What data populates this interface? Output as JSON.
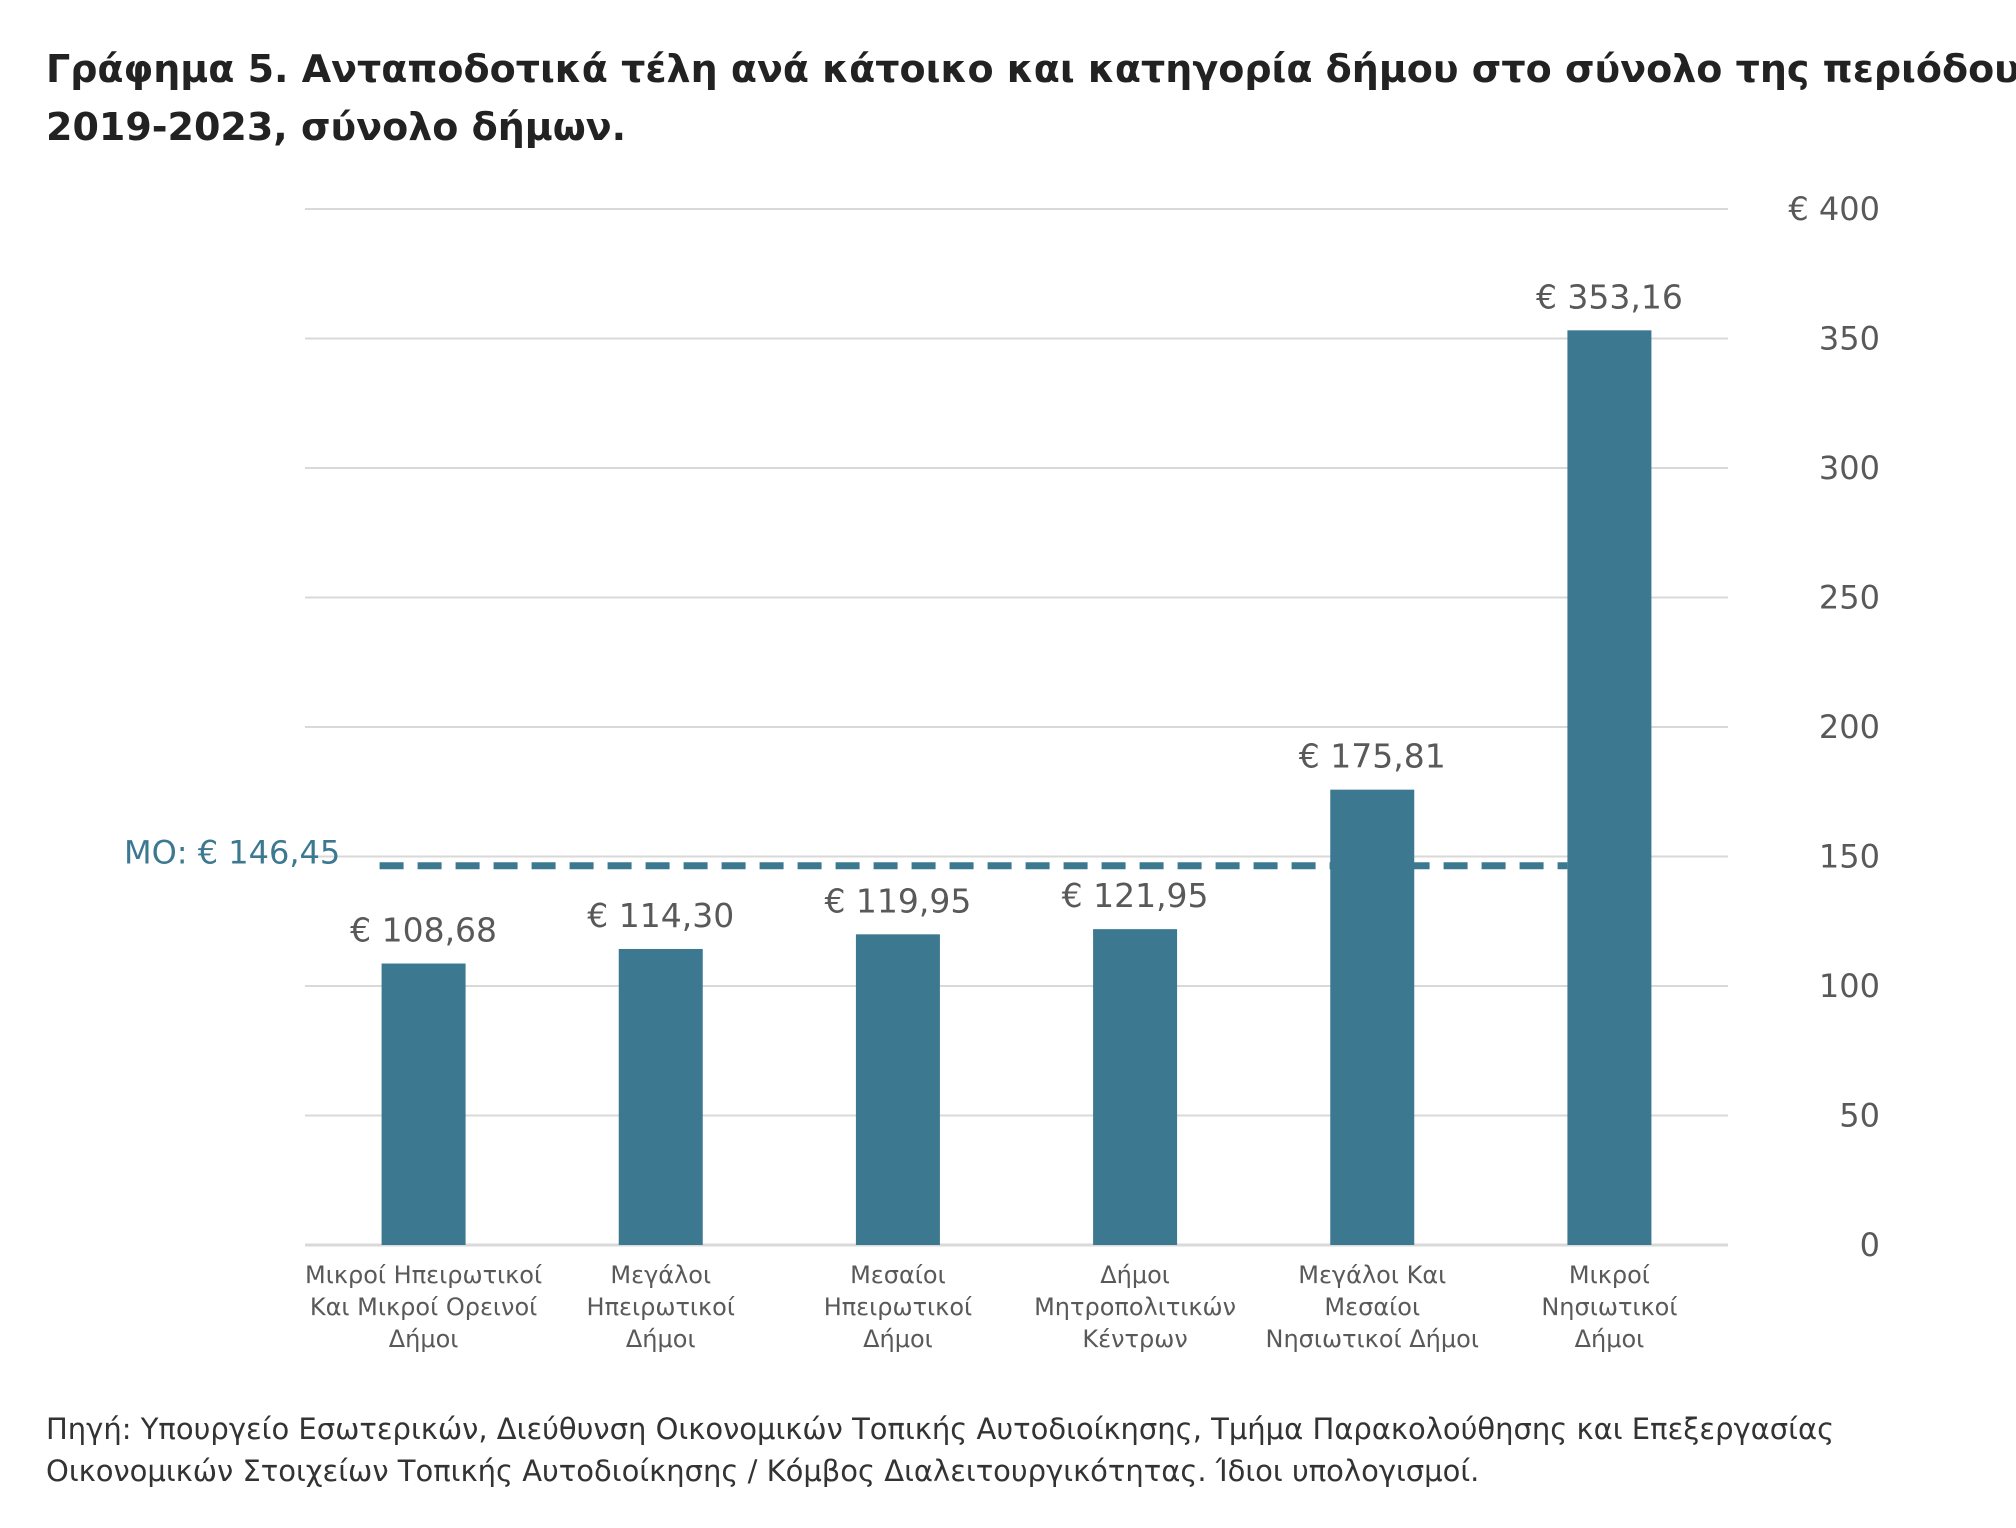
{
  "title_lines": [
    "Γράφημα 5. Ανταποδοτικά τέλη ανά κάτοικο και κατηγορία δήμου στο σύνολο της περιόδου",
    "2019-2023, σύνολο δήμων."
  ],
  "source_lines": [
    "Πηγή: Υπουργείο Εσωτερικών, Διεύθυνση Οικονομικών Τοπικής Αυτοδιοίκησης, Τμήμα Παρακολούθησης και Επεξεργασίας",
    "Οικονομικών Στοιχείων Τοπικής Αυτοδιοίκησης / Κόμβος Διαλειτουργικότητας. Ίδιοι υπολογισμοί."
  ],
  "colors": {
    "bar": "#3d7891",
    "grid": "#d9d9d9",
    "axis_text": "#595959",
    "label_text": "#595959",
    "average": "#3d7891"
  },
  "chart_data": {
    "type": "bar",
    "title": "Γράφημα 5. Ανταποδοτικά τέλη ανά κάτοικο και κατηγορία δήμου στο σύνολο της περιόδου 2019-2023, σύνολο δήμων.",
    "categories": [
      [
        "Μικροί Ηπειρωτικοί",
        "Και Μικροί Ορεινοί",
        "Δήμοι"
      ],
      [
        "Μεγάλοι",
        "Ηπειρωτικοί",
        "Δήμοι"
      ],
      [
        "Μεσαίοι",
        "Ηπειρωτικοί",
        "Δήμοι"
      ],
      [
        "Δήμοι",
        "Μητροπολιτικών",
        "Κέντρων"
      ],
      [
        "Μεγάλοι Και",
        "Μεσαίοι",
        "Νησιωτικοί Δήμοι"
      ],
      [
        "Μικροί",
        "Νησιωτικοί",
        "Δήμοι"
      ]
    ],
    "values": [
      108.68,
      114.3,
      119.95,
      121.95,
      175.81,
      353.16
    ],
    "data_labels": [
      "€ 108,68",
      "€ 114,30",
      "€ 119,95",
      "€ 121,95",
      "€ 175,81",
      "€ 353,16"
    ],
    "ylim": [
      0,
      400
    ],
    "yticks": [
      0,
      50,
      100,
      150,
      200,
      250,
      300,
      350,
      400
    ],
    "ytick_labels": [
      "0",
      "50",
      "100",
      "150",
      "200",
      "250",
      "300",
      "350",
      "€ 400"
    ],
    "y_axis_position": "right",
    "grid": true,
    "xlabel": "",
    "ylabel": "",
    "average": {
      "value": 146.45,
      "label": "ΜΟ: € 146,45",
      "style": "dashed"
    }
  }
}
